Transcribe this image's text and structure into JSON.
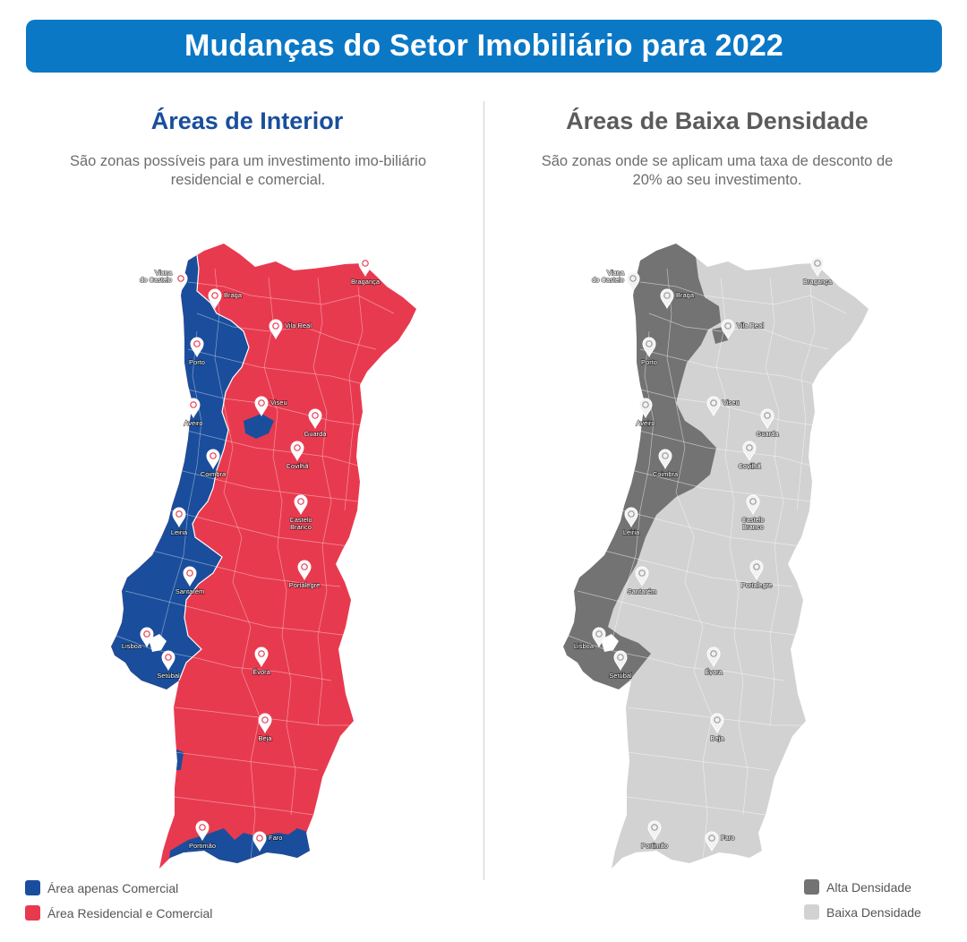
{
  "header": {
    "title": "Mudanças do Setor Imobiliário para 2022"
  },
  "left": {
    "title": "Áreas de Interior",
    "description": "São zonas possíveis para um investimento imo-biliário residencial e comercial."
  },
  "right": {
    "title": "Áreas de Baixa Densidade",
    "description": "São zonas onde se aplicam uma taxa de desconto de 20% ao seu investimento."
  },
  "legend_left": [
    {
      "label": "Área apenas Comercial",
      "color": "#1a4e9c"
    },
    {
      "label": "Área Residencial e Comercial",
      "color": "#e83a4f"
    }
  ],
  "legend_right": [
    {
      "label": "Alta Densidade",
      "color": "#737373"
    },
    {
      "label": "Baixa Densidade",
      "color": "#d2d2d2"
    }
  ],
  "cities": [
    {
      "name": "Viana do Castelo",
      "lines": [
        "Viana",
        "do Castelo"
      ]
    },
    {
      "name": "Braga",
      "lines": [
        "Braga"
      ]
    },
    {
      "name": "Bragança",
      "lines": [
        "Bragança"
      ]
    },
    {
      "name": "Vila Real",
      "lines": [
        "Vila Real"
      ]
    },
    {
      "name": "Porto",
      "lines": [
        "Porto"
      ]
    },
    {
      "name": "Viseu",
      "lines": [
        "Viseu"
      ]
    },
    {
      "name": "Aveiro",
      "lines": [
        "Aveiro"
      ]
    },
    {
      "name": "Guarda",
      "lines": [
        "Guarda"
      ]
    },
    {
      "name": "Coimbra",
      "lines": [
        "Coimbra"
      ]
    },
    {
      "name": "Covilhã",
      "lines": [
        "Covilhã"
      ]
    },
    {
      "name": "Castelo Branco",
      "lines": [
        "Castelo",
        "Branco"
      ]
    },
    {
      "name": "Leiria",
      "lines": [
        "Leiria"
      ]
    },
    {
      "name": "Portalegre",
      "lines": [
        "Portalegre"
      ]
    },
    {
      "name": "Santarém",
      "lines": [
        "Santarém"
      ]
    },
    {
      "name": "Lisboa",
      "lines": [
        "Lisboa"
      ]
    },
    {
      "name": "Setúbal",
      "lines": [
        "Setúbal"
      ]
    },
    {
      "name": "Évora",
      "lines": [
        "Évora"
      ]
    },
    {
      "name": "Beja",
      "lines": [
        "Beja"
      ]
    },
    {
      "name": "Portimão",
      "lines": [
        "Portimão"
      ]
    },
    {
      "name": "Faro",
      "lines": [
        "Faro"
      ]
    }
  ],
  "colors": {
    "banner": "#0b78c6",
    "commercial_only": "#1a4e9c",
    "residential_commercial": "#e83a4f",
    "high_density": "#737373",
    "low_density": "#d2d2d2"
  }
}
